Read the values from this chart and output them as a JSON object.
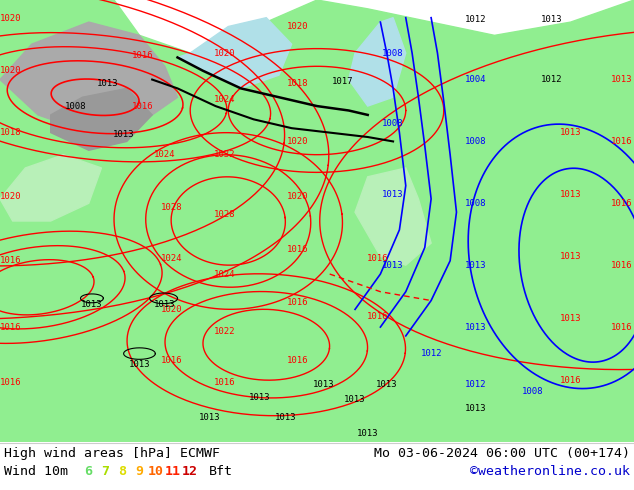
{
  "title_left": "High wind areas [hPa] ECMWF",
  "title_right": "Mo 03-06-2024 06:00 UTC (00+174)",
  "wind_label": "Wind 10m",
  "bft_label": "Bft",
  "bft_values": [
    "6",
    "7",
    "8",
    "9",
    "10",
    "11",
    "12"
  ],
  "bft_colors": [
    "#66dd66",
    "#aadd00",
    "#dddd00",
    "#ffaa00",
    "#ff6600",
    "#ff2200",
    "#cc0000"
  ],
  "copyright": "©weatheronline.co.uk",
  "copyright_color": "#0000cc",
  "bg_color": "#ffffff",
  "legend_bg": "#f0f0f0",
  "map_sea_color": "#c8e6c8",
  "map_land_color": "#90EE90",
  "map_gray_color": "#aaaaaa",
  "map_cyan_color": "#b0e0e8",
  "label_fontsize": 9.5,
  "fig_width": 6.34,
  "fig_height": 4.9,
  "dpi": 100
}
